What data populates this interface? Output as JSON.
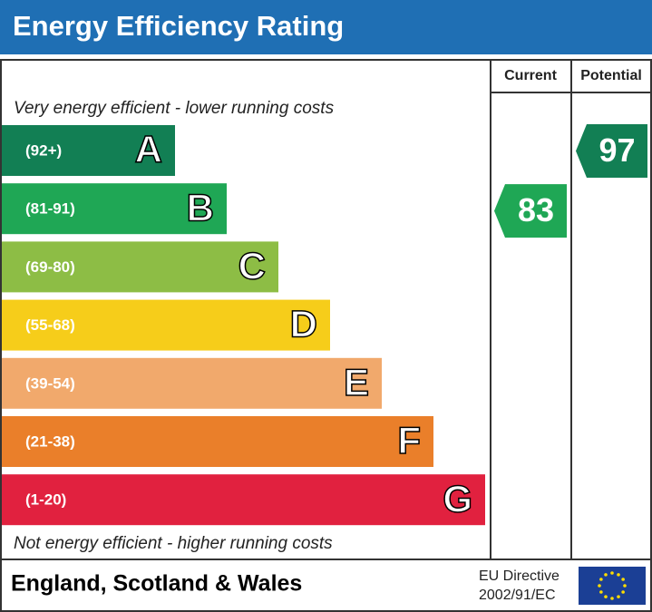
{
  "title": "Energy Efficiency Rating",
  "columns": [
    "Current",
    "Potential"
  ],
  "top_note": "Very energy efficient - lower running costs",
  "bottom_note": "Not energy efficient - higher running costs",
  "bands": [
    {
      "range": "(92+)",
      "letter": "A",
      "color": "#127f54"
    },
    {
      "range": "(81-91)",
      "letter": "B",
      "color": "#1fa755"
    },
    {
      "range": "(69-80)",
      "letter": "C",
      "color": "#8dbd45"
    },
    {
      "range": "(55-68)",
      "letter": "D",
      "color": "#f6cd1a"
    },
    {
      "range": "(39-54)",
      "letter": "E",
      "color": "#f1a96c"
    },
    {
      "range": "(21-38)",
      "letter": "F",
      "color": "#ea7f2a"
    },
    {
      "range": "(1-20)",
      "letter": "G",
      "color": "#e1213f"
    }
  ],
  "current": {
    "value": 83
  },
  "potential": {
    "value": 97
  },
  "footer": {
    "region": "England, Scotland & Wales",
    "directive": [
      "EU Directive",
      "2002/91/EC"
    ]
  }
}
